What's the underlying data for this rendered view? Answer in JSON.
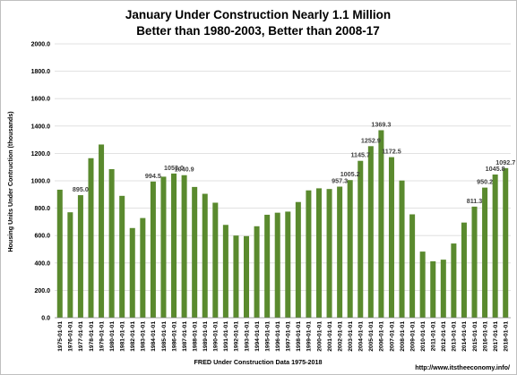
{
  "chart_data": {
    "type": "bar",
    "title_lines": [
      "January  Under Construction Nearly 1.1 Million",
      "Better than 1980-2003, Better than 2008-17"
    ],
    "ylabel": "Housing Units Under Contruction (thousands)",
    "xlabel": "FRED Under Construction Data 1975-2018",
    "source_note": "http://www.itstheeconomy.info/",
    "ylim": [
      0,
      2000
    ],
    "yticks": [
      0,
      200,
      400,
      600,
      800,
      1000,
      1200,
      1400,
      1600,
      1800,
      2000
    ],
    "ytick_labels": [
      "0.0",
      "200.0",
      "400.0",
      "600.0",
      "800.0",
      "1000.0",
      "1200.0",
      "1400.0",
      "1600.0",
      "1800.0",
      "2000.0"
    ],
    "grid": true,
    "bar_color": "#5a8a2e",
    "categories": [
      "1975-01-01",
      "1976-01-01",
      "1977-01-01",
      "1978-01-01",
      "1979-01-01",
      "1980-01-01",
      "1981-01-01",
      "1982-01-01",
      "1983-01-01",
      "1984-01-01",
      "1985-01-01",
      "1986-01-01",
      "1987-01-01",
      "1988-01-01",
      "1989-01-01",
      "1990-01-01",
      "1991-01-01",
      "1992-01-01",
      "1993-01-01",
      "1994-01-01",
      "1995-01-01",
      "1996-01-01",
      "1997-01-01",
      "1998-01-01",
      "1999-01-01",
      "2000-01-01",
      "2001-01-01",
      "2002-01-01",
      "2003-01-01",
      "2004-01-01",
      "2005-01-01",
      "2006-01-01",
      "2007-01-01",
      "2008-01-01",
      "2009-01-01",
      "2010-01-01",
      "2011-01-01",
      "2012-01-01",
      "2013-01-01",
      "2014-01-01",
      "2015-01-01",
      "2016-01-01",
      "2017-01-01",
      "2018-01-01"
    ],
    "values": [
      935,
      770,
      895.0,
      1165,
      1265,
      1085,
      890,
      655,
      728,
      994.5,
      1030,
      1053.0,
      1040.9,
      955,
      905,
      840,
      678,
      600,
      596,
      668,
      752,
      767,
      775,
      845,
      930,
      945,
      940,
      957.3,
      1005.2,
      1145.7,
      1252.9,
      1369.3,
      1172.5,
      1002,
      755,
      483,
      412,
      424,
      542,
      695,
      811.3,
      950.2,
      1045.8,
      1092.7
    ],
    "data_labels": [
      {
        "index": 2,
        "text": "895.0"
      },
      {
        "index": 9,
        "text": "994.5"
      },
      {
        "index": 11,
        "text": "1053.0"
      },
      {
        "index": 12,
        "text": "1040.9"
      },
      {
        "index": 27,
        "text": "957.3"
      },
      {
        "index": 28,
        "text": "1005.2"
      },
      {
        "index": 29,
        "text": "1145.7"
      },
      {
        "index": 30,
        "text": "1252.9"
      },
      {
        "index": 31,
        "text": "1369.3"
      },
      {
        "index": 32,
        "text": "1172.5"
      },
      {
        "index": 40,
        "text": "811.3"
      },
      {
        "index": 41,
        "text": "950.2"
      },
      {
        "index": 42,
        "text": "1045.8"
      },
      {
        "index": 43,
        "text": "1092.7"
      }
    ]
  }
}
